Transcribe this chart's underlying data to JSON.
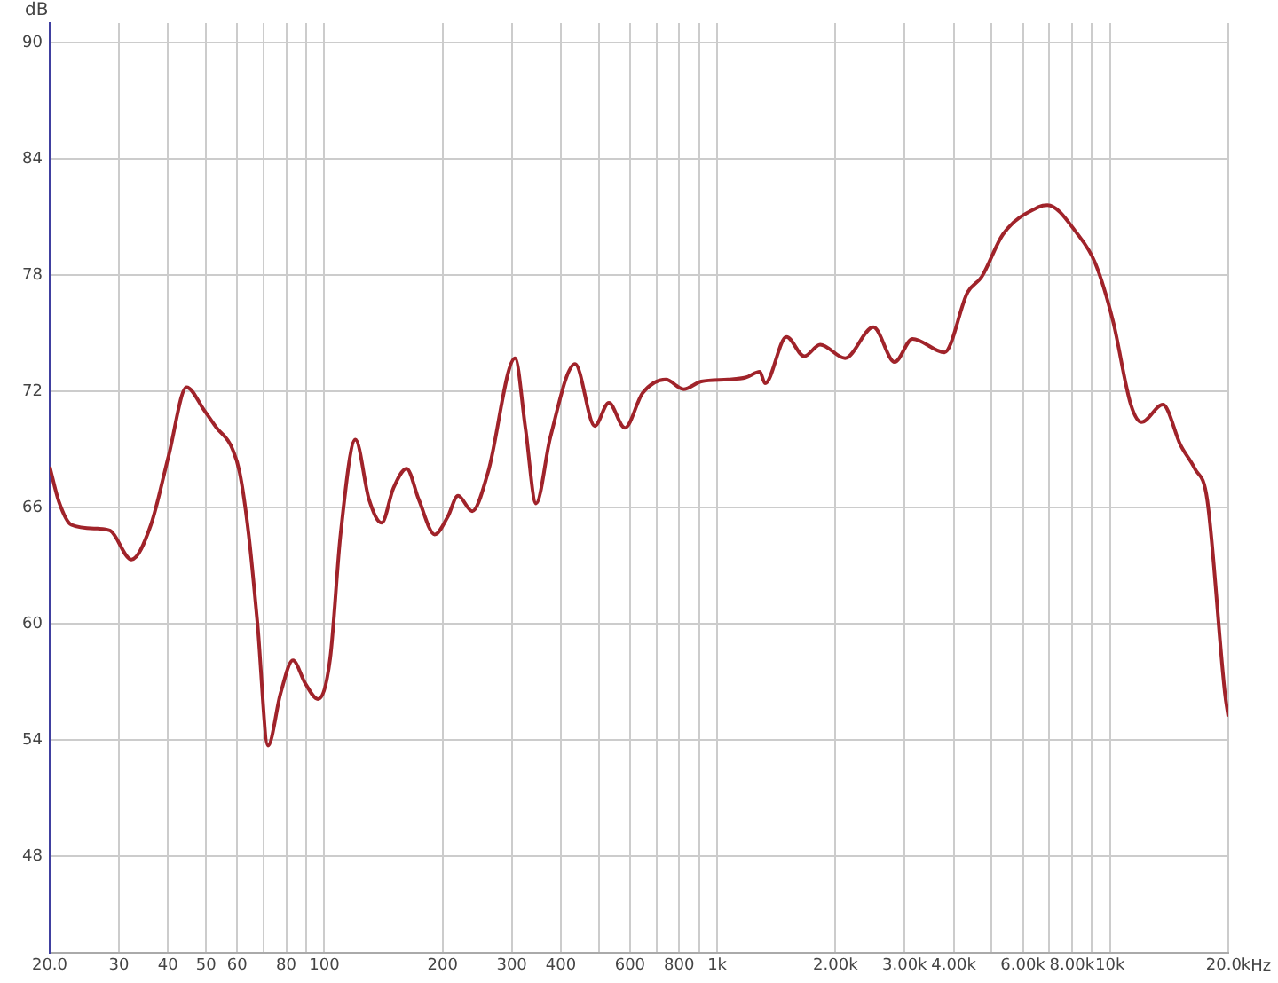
{
  "chart_data": {
    "type": "line",
    "ylabel": "dB",
    "xlabel": "Hz",
    "log": "x",
    "grid": true,
    "legend": false,
    "marker": "none",
    "xlim": [
      20,
      20000
    ],
    "ylim": [
      43,
      91
    ],
    "xticks": [
      {
        "value": 20,
        "label": "20.0"
      },
      30,
      40,
      50,
      60,
      {
        "value": 70,
        "label": null
      },
      80,
      {
        "value": 90,
        "label": null
      },
      100,
      200,
      300,
      400,
      {
        "value": 500,
        "label": null
      },
      600,
      {
        "value": 700,
        "label": null
      },
      800,
      {
        "value": 900,
        "label": null
      },
      {
        "value": 1000,
        "label": "1k"
      },
      {
        "value": 2000,
        "label": "2.00k"
      },
      {
        "value": 3000,
        "label": "3.00k"
      },
      {
        "value": 4000,
        "label": "4.00k"
      },
      {
        "value": 5000,
        "label": null
      },
      {
        "value": 6000,
        "label": "6.00k"
      },
      {
        "value": 7000,
        "label": null
      },
      {
        "value": 8000,
        "label": "8.00k"
      },
      {
        "value": 9000,
        "label": null
      },
      {
        "value": 10000,
        "label": "10k"
      },
      {
        "value": 20000,
        "label": "20.0k"
      }
    ],
    "yticks": [
      48,
      54,
      60,
      66,
      72,
      78,
      84,
      90
    ],
    "x": [
      20,
      21.1,
      22.7,
      26.5,
      28.5,
      32.3,
      36.2,
      40.2,
      44.6,
      49.5,
      53.2,
      57.8,
      60.9,
      64.2,
      67.6,
      71.9,
      77.4,
      83.2,
      89.5,
      96.3,
      103.5,
      110,
      120,
      130,
      140,
      150,
      162,
      174,
      191,
      206,
      219,
      238,
      261,
      306,
      325,
      346,
      376,
      435,
      488,
      530,
      582,
      646,
      740,
      821,
      911,
      1065,
      1181,
      1284,
      1324,
      1501,
      1666,
      1829,
      2116,
      2498,
      2831,
      3142,
      3789,
      4339,
      4714,
      5342,
      6576,
      6929,
      8270,
      9173,
      10180,
      11298,
      12023,
      13628,
      15123,
      16430,
      17672,
      19608,
      20000
    ],
    "series": [
      {
        "color": "#a0232a",
        "values": [
          68.1,
          66.3,
          65.1,
          64.9,
          64.8,
          63.3,
          65.1,
          68.7,
          72.2,
          71.0,
          70.1,
          69.2,
          67.8,
          64.6,
          60.0,
          53.7,
          56.4,
          58.1,
          56.9,
          56.1,
          58.2,
          64.6,
          69.5,
          66.4,
          65.2,
          67.0,
          68.0,
          66.4,
          64.6,
          65.5,
          66.6,
          65.8,
          67.8,
          73.7,
          70.1,
          66.2,
          69.6,
          73.4,
          70.2,
          71.4,
          70.1,
          71.9,
          72.6,
          72.1,
          72.5,
          72.6,
          72.7,
          73.0,
          72.4,
          74.8,
          73.8,
          74.4,
          73.7,
          75.3,
          73.5,
          74.7,
          74.0,
          77.1,
          77.9,
          80.1,
          81.5,
          81.6,
          80.1,
          78.6,
          75.6,
          71.3,
          70.4,
          71.3,
          69.2,
          68.0,
          66.4,
          56.4,
          55.2
        ]
      }
    ]
  }
}
